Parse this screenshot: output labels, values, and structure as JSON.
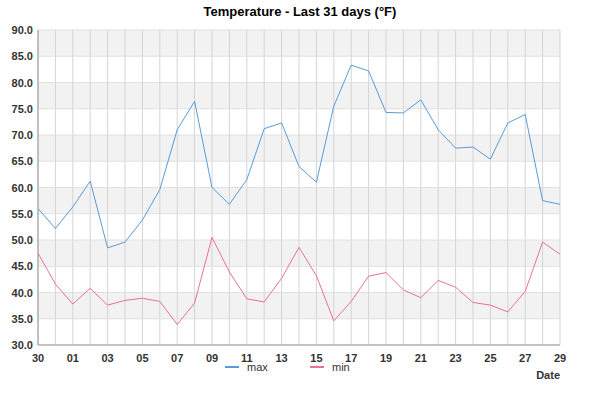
{
  "chart_data": {
    "type": "line",
    "title": "Temperature - Last 31 days (°F)",
    "x_label": "Date",
    "categories": [
      "30",
      null,
      "01",
      null,
      "03",
      null,
      "05",
      null,
      "07",
      null,
      "09",
      null,
      "11",
      null,
      "13",
      null,
      "15",
      null,
      "17",
      null,
      "19",
      null,
      "21",
      null,
      "23",
      null,
      "25",
      null,
      "27",
      null,
      "29"
    ],
    "series": [
      {
        "name": "max",
        "color": "#5b9bd5",
        "values": [
          56.0,
          52.2,
          56.3,
          61.2,
          48.5,
          49.6,
          53.8,
          59.6,
          71.0,
          76.4,
          60.0,
          56.8,
          61.5,
          71.2,
          72.3,
          64.0,
          61.0,
          75.5,
          83.3,
          82.2,
          74.3,
          74.2,
          76.7,
          71.0,
          67.5,
          67.7,
          65.4,
          72.3,
          73.9,
          57.5,
          56.8
        ]
      },
      {
        "name": "min",
        "color": "#ea6f9a",
        "values": [
          47.5,
          41.6,
          37.8,
          40.8,
          37.6,
          38.5,
          38.9,
          38.3,
          33.9,
          38.0,
          50.5,
          43.9,
          38.8,
          38.2,
          42.7,
          48.6,
          43.2,
          34.6,
          38.3,
          43.1,
          43.8,
          40.5,
          39.0,
          42.3,
          41.0,
          38.1,
          37.6,
          36.3,
          40.2,
          49.6,
          47.3
        ]
      }
    ],
    "ylim": [
      30,
      90
    ],
    "yticks": [
      {
        "value": 30,
        "label": "30.0"
      },
      {
        "value": 35,
        "label": "35.0"
      },
      {
        "value": 40,
        "label": "40.0"
      },
      {
        "value": 45,
        "label": "45.0"
      },
      {
        "value": 50,
        "label": "50.0"
      },
      {
        "value": 55,
        "label": "55.0"
      },
      {
        "value": 60,
        "label": "60.0"
      },
      {
        "value": 65,
        "label": "65.0"
      },
      {
        "value": 70,
        "label": "70.0"
      },
      {
        "value": 75,
        "label": "75.0"
      },
      {
        "value": 80,
        "label": "80.0"
      },
      {
        "value": 85,
        "label": "85.0"
      },
      {
        "value": 90,
        "label": "90.0"
      }
    ],
    "grid": true,
    "legend": "bottom"
  }
}
